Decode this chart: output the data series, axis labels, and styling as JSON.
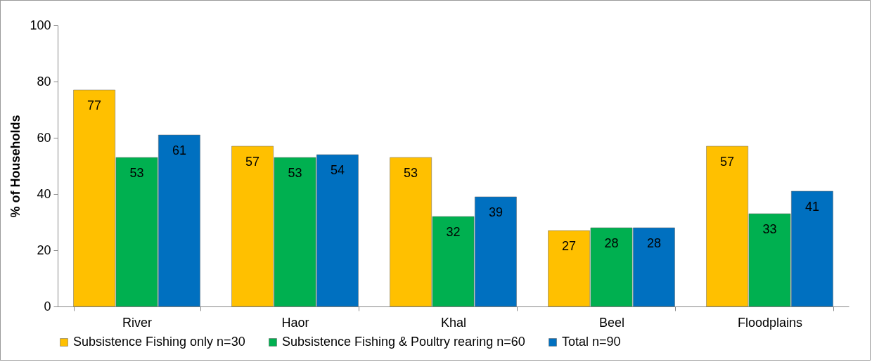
{
  "chart_data": {
    "type": "bar",
    "ylabel": "% of Households",
    "categories": [
      "River",
      "Haor",
      "Khal",
      "Beel",
      "Floodplains"
    ],
    "series": [
      {
        "name": "Subsistence Fishing only n=30",
        "color": "#ffc000",
        "values": [
          77,
          57,
          53,
          27,
          57
        ]
      },
      {
        "name": "Subsistence Fishing & Poultry rearing n=60",
        "color": "#00b050",
        "values": [
          53,
          53,
          32,
          28,
          33
        ]
      },
      {
        "name": "Total n=90",
        "color": "#0070c0",
        "values": [
          61,
          54,
          39,
          28,
          41
        ]
      }
    ],
    "ylim": [
      0,
      100
    ],
    "yticks": [
      0,
      20,
      40,
      60,
      80,
      100
    ],
    "grid": false,
    "legend": "bottom",
    "data_labels": true
  }
}
